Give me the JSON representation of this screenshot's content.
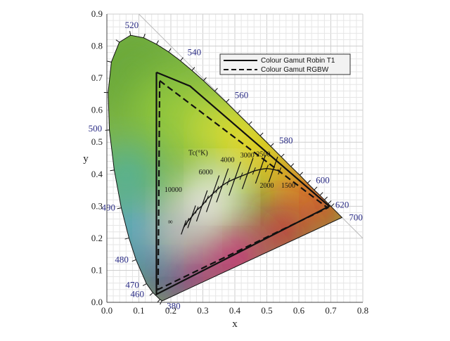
{
  "chart_data": {
    "type": "line",
    "title": "",
    "xlabel": "x",
    "ylabel": "y",
    "xlim": [
      0.0,
      0.8
    ],
    "ylim": [
      0.0,
      0.9
    ],
    "grid": true,
    "x_ticks": [
      "0.0",
      "0.1",
      "0.2",
      "0.3",
      "0.4",
      "0.5",
      "0.6",
      "0.7",
      "0.8"
    ],
    "y_ticks": [
      "0.0",
      "0.1",
      "0.2",
      "0.3",
      "0.4",
      "0.5",
      "0.6",
      "0.7",
      "0.8",
      "0.9"
    ],
    "legend": {
      "position": "top-right",
      "entries": [
        {
          "label": "Colour Gamut Robin T1",
          "style": "solid"
        },
        {
          "label": "Colour Gamut RGBW",
          "style": "dashed"
        }
      ]
    },
    "spectral_locus": [
      [
        0.174,
        0.005
      ],
      [
        0.172,
        0.005
      ],
      [
        0.166,
        0.009
      ],
      [
        0.144,
        0.03
      ],
      [
        0.124,
        0.058
      ],
      [
        0.091,
        0.133
      ],
      [
        0.069,
        0.201
      ],
      [
        0.045,
        0.295
      ],
      [
        0.023,
        0.413
      ],
      [
        0.008,
        0.538
      ],
      [
        0.004,
        0.655
      ],
      [
        0.014,
        0.75
      ],
      [
        0.039,
        0.812
      ],
      [
        0.074,
        0.834
      ],
      [
        0.115,
        0.826
      ],
      [
        0.155,
        0.806
      ],
      [
        0.193,
        0.782
      ],
      [
        0.23,
        0.754
      ],
      [
        0.266,
        0.724
      ],
      [
        0.302,
        0.692
      ],
      [
        0.337,
        0.659
      ],
      [
        0.373,
        0.625
      ],
      [
        0.408,
        0.59
      ],
      [
        0.444,
        0.555
      ],
      [
        0.479,
        0.52
      ],
      [
        0.512,
        0.487
      ],
      [
        0.545,
        0.454
      ],
      [
        0.575,
        0.424
      ],
      [
        0.603,
        0.397
      ],
      [
        0.627,
        0.372
      ],
      [
        0.648,
        0.351
      ],
      [
        0.666,
        0.334
      ],
      [
        0.68,
        0.32
      ],
      [
        0.692,
        0.308
      ],
      [
        0.701,
        0.299
      ],
      [
        0.735,
        0.265
      ]
    ],
    "wavelength_labels": [
      {
        "label": "380",
        "x": 0.174,
        "y": 0.005
      },
      {
        "label": "460",
        "x": 0.144,
        "y": 0.03
      },
      {
        "label": "470",
        "x": 0.124,
        "y": 0.058
      },
      {
        "label": "480",
        "x": 0.091,
        "y": 0.133
      },
      {
        "label": "490",
        "x": 0.045,
        "y": 0.295
      },
      {
        "label": "500",
        "x": 0.008,
        "y": 0.538
      },
      {
        "label": "520",
        "x": 0.074,
        "y": 0.834
      },
      {
        "label": "540",
        "x": 0.23,
        "y": 0.754
      },
      {
        "label": "560",
        "x": 0.373,
        "y": 0.625
      },
      {
        "label": "580",
        "x": 0.512,
        "y": 0.487
      },
      {
        "label": "600",
        "x": 0.627,
        "y": 0.372
      },
      {
        "label": "620",
        "x": 0.692,
        "y": 0.308
      },
      {
        "label": "700",
        "x": 0.735,
        "y": 0.265
      }
    ],
    "series": [
      {
        "name": "Colour Gamut Robin T1",
        "style": "solid",
        "points": [
          [
            0.155,
            0.718
          ],
          [
            0.26,
            0.675
          ],
          [
            0.695,
            0.3
          ],
          [
            0.155,
            0.025
          ],
          [
            0.155,
            0.718
          ]
        ]
      },
      {
        "name": "Colour Gamut RGBW",
        "style": "dashed",
        "points": [
          [
            0.165,
            0.692
          ],
          [
            0.69,
            0.295
          ],
          [
            0.16,
            0.04
          ],
          [
            0.165,
            0.692
          ]
        ]
      }
    ],
    "planckian_locus": [
      [
        0.24,
        0.234
      ],
      [
        0.252,
        0.252
      ],
      [
        0.265,
        0.267
      ],
      [
        0.281,
        0.288
      ],
      [
        0.297,
        0.301
      ],
      [
        0.313,
        0.322
      ],
      [
        0.331,
        0.339
      ],
      [
        0.345,
        0.352
      ],
      [
        0.361,
        0.365
      ],
      [
        0.38,
        0.377
      ],
      [
        0.4,
        0.386
      ],
      [
        0.42,
        0.394
      ],
      [
        0.44,
        0.402
      ],
      [
        0.46,
        0.41
      ],
      [
        0.48,
        0.415
      ],
      [
        0.5,
        0.418
      ],
      [
        0.52,
        0.415
      ],
      [
        0.54,
        0.41
      ]
    ],
    "cct_labels": [
      {
        "label": "Tc(°K)",
        "x": 0.255,
        "y": 0.46
      },
      {
        "label": "10000",
        "x": 0.18,
        "y": 0.345
      },
      {
        "label": "6000",
        "x": 0.287,
        "y": 0.4
      },
      {
        "label": "4000",
        "x": 0.355,
        "y": 0.438
      },
      {
        "label": "3000",
        "x": 0.417,
        "y": 0.452
      },
      {
        "label": "2500",
        "x": 0.467,
        "y": 0.455
      },
      {
        "label": "2000",
        "x": 0.478,
        "y": 0.358
      },
      {
        "label": "1500",
        "x": 0.545,
        "y": 0.358
      },
      {
        "label": "∞",
        "x": 0.19,
        "y": 0.245
      }
    ]
  }
}
